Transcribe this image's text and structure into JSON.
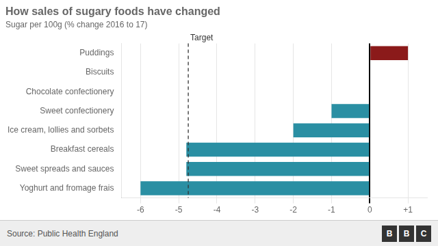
{
  "chart_data": {
    "type": "bar",
    "orientation": "horizontal",
    "title": "How sales of sugary foods have changed",
    "subtitle": "Sugar per 100g (% change 2016 to 17)",
    "categories": [
      "Yoghurt and fromage frais",
      "Sweet spreads and sauces",
      "Breakfast cereals",
      "Ice cream, lollies and sorbets",
      "Sweet confectionery",
      "Chocolate confectionery",
      "Biscuits",
      "Puddings"
    ],
    "values": [
      -6.0,
      -4.8,
      -4.8,
      -2.0,
      -1.0,
      0.0,
      0.0,
      1.0
    ],
    "colors": [
      "#2a8fa3",
      "#2a8fa3",
      "#2a8fa3",
      "#2a8fa3",
      "#2a8fa3",
      "#2a8fa3",
      "#2a8fa3",
      "#8b1a1a"
    ],
    "xlim": [
      -6.5,
      1.5
    ],
    "xticks": [
      -6,
      -5,
      -4,
      -3,
      -2,
      -1,
      0,
      {
        "value": 1,
        "label": "+1"
      }
    ],
    "grid": true,
    "annotations": [
      {
        "type": "vline",
        "x": -4.75,
        "label": "Target",
        "line_style": "dashed"
      }
    ],
    "source": "Source: Public Health England",
    "logo": "BBC"
  }
}
